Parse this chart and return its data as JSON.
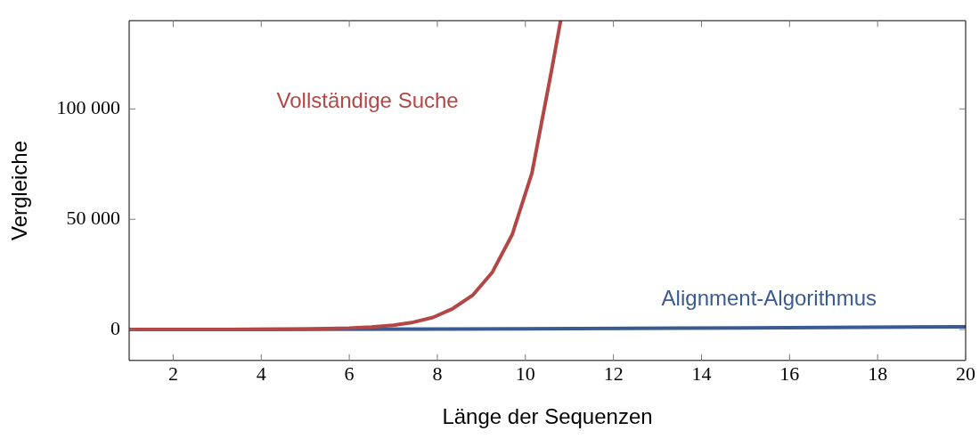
{
  "chart_data": {
    "type": "line",
    "xlabel": "Länge der Sequenzen",
    "ylabel": "Vergleiche",
    "xlim": [
      1,
      20
    ],
    "xticks": [
      2,
      4,
      6,
      8,
      10,
      12,
      14,
      16,
      18,
      20
    ],
    "ylim": [
      -14000,
      140000
    ],
    "yticks": [
      {
        "value": 0,
        "label": "0"
      },
      {
        "value": 50000,
        "label": "50 000"
      },
      {
        "value": 100000,
        "label": "100 000"
      }
    ],
    "grid": false,
    "legend": false,
    "marker": "none",
    "line_style": "solid",
    "series": [
      {
        "name": "Vollständige Suche",
        "color": "#b24745",
        "x": [
          1,
          3,
          5,
          6,
          6.5,
          7,
          7.45,
          7.9,
          8.35,
          8.8,
          9.25,
          9.7,
          10.15,
          10.6,
          10.8
        ],
        "values": [
          0,
          20,
          250,
          700,
          1200,
          2000,
          3300,
          5500,
          9500,
          15500,
          26000,
          43000,
          71000,
          118000,
          140000
        ]
      },
      {
        "name": "Alignment-Algorithmus",
        "color": "#3a5a92",
        "x": [
          1,
          5,
          10,
          15,
          20
        ],
        "values": [
          0,
          100,
          350,
          750,
          1300
        ]
      }
    ]
  }
}
